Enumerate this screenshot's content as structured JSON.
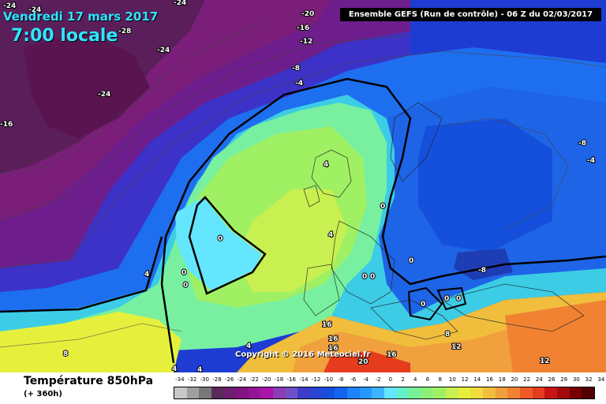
{
  "header": {
    "date": "Vendredi 17 mars 2017",
    "time": "7:00 locale",
    "run": "Ensemble GEFS  (Run de contrôle)  -  06 Z du 02/03/2017"
  },
  "copyright": "Copyright © 2016 Meteociel.fr",
  "footer": {
    "variable": "Température 850hPa",
    "lead": "(+ 360h)"
  },
  "scale": {
    "labels": [
      "-34",
      "-32",
      "-30",
      "-28",
      "-26",
      "-24",
      "-22",
      "-20",
      "-18",
      "-16",
      "-14",
      "-12",
      "-10",
      "-8",
      "-6",
      "-4",
      "-2",
      "0",
      "2",
      "4",
      "6",
      "8",
      "10",
      "12",
      "14",
      "16",
      "18",
      "20",
      "22",
      "24",
      "26",
      "28",
      "30",
      "32",
      "34"
    ],
    "colors": [
      "#c8c8c8",
      "#a0a0a0",
      "#787878",
      "#5a2a5a",
      "#6e1e6e",
      "#821482",
      "#961496",
      "#aa14aa",
      "#8c3cb4",
      "#6e50c8",
      "#3c3cc8",
      "#2846d2",
      "#1450dc",
      "#1464f0",
      "#1e82ff",
      "#2896ff",
      "#3cb4ff",
      "#64e6ff",
      "#64f0c8",
      "#78f096",
      "#8cf078",
      "#a0f064",
      "#c8f050",
      "#e6f03c",
      "#f0dc3c",
      "#f0be3c",
      "#f0a03c",
      "#f08232",
      "#f05a28",
      "#e63c1e",
      "#c81414",
      "#a00a0a",
      "#780000",
      "#500000"
    ]
  },
  "contour_labels": [
    "-24",
    "-24",
    "-24",
    "-28",
    "-24",
    "-24",
    "-16",
    "-20",
    "-16",
    "-12",
    "-8",
    "-4",
    "-8",
    "-4",
    "4",
    "0",
    "4",
    "0",
    "4",
    "0",
    "0",
    "0",
    "0",
    "0",
    "-8",
    "0",
    "0",
    "0",
    "8",
    "12",
    "16",
    "16",
    "16",
    "20",
    "16",
    "4",
    "4",
    "4",
    "12",
    "8"
  ]
}
